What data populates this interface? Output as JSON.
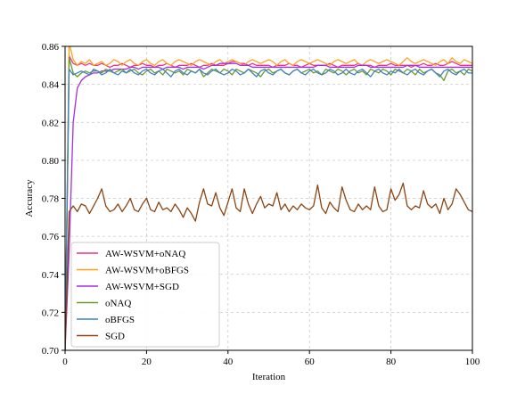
{
  "chart_data": {
    "type": "line",
    "title": "",
    "xlabel": "Iteration",
    "ylabel": "Accuracy",
    "xlim": [
      0,
      100
    ],
    "ylim": [
      0.7,
      0.86
    ],
    "xticks": [
      0,
      20,
      40,
      60,
      80,
      100
    ],
    "yticks": [
      0.7,
      0.72,
      0.74,
      0.76,
      0.78,
      0.8,
      0.82,
      0.84,
      0.86
    ],
    "xtick_labels": [
      "0",
      "20",
      "40",
      "60",
      "80",
      "100"
    ],
    "ytick_labels": [
      "0.70",
      "0.72",
      "0.74",
      "0.76",
      "0.78",
      "0.80",
      "0.82",
      "0.84",
      "0.86"
    ],
    "grid": true,
    "legend_position": "lower-left",
    "x": [
      0,
      1,
      2,
      3,
      4,
      5,
      6,
      7,
      8,
      9,
      10,
      11,
      12,
      13,
      14,
      15,
      16,
      17,
      18,
      19,
      20,
      21,
      22,
      23,
      24,
      25,
      26,
      27,
      28,
      29,
      30,
      31,
      32,
      33,
      34,
      35,
      36,
      37,
      38,
      39,
      40,
      41,
      42,
      43,
      44,
      45,
      46,
      47,
      48,
      49,
      50,
      51,
      52,
      53,
      54,
      55,
      56,
      57,
      58,
      59,
      60,
      61,
      62,
      63,
      64,
      65,
      66,
      67,
      68,
      69,
      70,
      71,
      72,
      73,
      74,
      75,
      76,
      77,
      78,
      79,
      80,
      81,
      82,
      83,
      84,
      85,
      86,
      87,
      88,
      89,
      90,
      91,
      92,
      93,
      94,
      95,
      96,
      97,
      98,
      99,
      100
    ],
    "series": [
      {
        "name": "AW-WSVM+oNAQ",
        "color": "#e8338c",
        "values": [
          0.7,
          0.855,
          0.851,
          0.85,
          0.851,
          0.85,
          0.851,
          0.85,
          0.85,
          0.851,
          0.85,
          0.849,
          0.85,
          0.85,
          0.851,
          0.85,
          0.849,
          0.85,
          0.85,
          0.851,
          0.85,
          0.85,
          0.849,
          0.85,
          0.85,
          0.851,
          0.85,
          0.849,
          0.85,
          0.85,
          0.85,
          0.851,
          0.85,
          0.849,
          0.85,
          0.85,
          0.851,
          0.85,
          0.85,
          0.85,
          0.851,
          0.852,
          0.852,
          0.851,
          0.851,
          0.85,
          0.851,
          0.85,
          0.85,
          0.85,
          0.85,
          0.849,
          0.85,
          0.85,
          0.85,
          0.851,
          0.85,
          0.85,
          0.849,
          0.85,
          0.851,
          0.85,
          0.85,
          0.85,
          0.85,
          0.851,
          0.85,
          0.849,
          0.85,
          0.85,
          0.85,
          0.85,
          0.851,
          0.85,
          0.85,
          0.85,
          0.849,
          0.85,
          0.85,
          0.85,
          0.851,
          0.85,
          0.85,
          0.85,
          0.85,
          0.849,
          0.85,
          0.85,
          0.851,
          0.85,
          0.85,
          0.851,
          0.85,
          0.85,
          0.851,
          0.852,
          0.851,
          0.85,
          0.85,
          0.85,
          0.85
        ]
      },
      {
        "name": "AW-WSVM+oBFGS",
        "color": "#ff9f1c",
        "values": [
          0.7,
          0.862,
          0.853,
          0.85,
          0.852,
          0.851,
          0.853,
          0.85,
          0.851,
          0.852,
          0.85,
          0.851,
          0.853,
          0.852,
          0.85,
          0.852,
          0.853,
          0.851,
          0.85,
          0.852,
          0.853,
          0.851,
          0.85,
          0.852,
          0.853,
          0.851,
          0.85,
          0.852,
          0.853,
          0.852,
          0.851,
          0.85,
          0.852,
          0.853,
          0.852,
          0.851,
          0.85,
          0.852,
          0.853,
          0.851,
          0.852,
          0.853,
          0.852,
          0.851,
          0.85,
          0.852,
          0.853,
          0.852,
          0.851,
          0.852,
          0.853,
          0.852,
          0.85,
          0.852,
          0.853,
          0.851,
          0.85,
          0.852,
          0.853,
          0.852,
          0.851,
          0.852,
          0.853,
          0.852,
          0.851,
          0.85,
          0.852,
          0.853,
          0.852,
          0.851,
          0.852,
          0.853,
          0.851,
          0.85,
          0.852,
          0.853,
          0.852,
          0.851,
          0.852,
          0.853,
          0.852,
          0.851,
          0.85,
          0.852,
          0.854,
          0.852,
          0.851,
          0.852,
          0.853,
          0.852,
          0.851,
          0.85,
          0.852,
          0.853,
          0.851,
          0.854,
          0.852,
          0.851,
          0.853,
          0.852,
          0.851
        ]
      },
      {
        "name": "AW-WSVM+SGD",
        "color": "#a52ee0",
        "values": [
          0.7,
          0.752,
          0.82,
          0.838,
          0.842,
          0.844,
          0.845,
          0.846,
          0.846,
          0.847,
          0.847,
          0.847,
          0.848,
          0.848,
          0.848,
          0.848,
          0.849,
          0.849,
          0.848,
          0.849,
          0.849,
          0.849,
          0.849,
          0.849,
          0.848,
          0.849,
          0.849,
          0.849,
          0.849,
          0.848,
          0.849,
          0.849,
          0.849,
          0.849,
          0.848,
          0.849,
          0.85,
          0.85,
          0.851,
          0.851,
          0.851,
          0.851,
          0.851,
          0.85,
          0.85,
          0.85,
          0.849,
          0.849,
          0.849,
          0.849,
          0.849,
          0.849,
          0.849,
          0.849,
          0.849,
          0.849,
          0.849,
          0.849,
          0.849,
          0.849,
          0.849,
          0.849,
          0.85,
          0.85,
          0.85,
          0.849,
          0.849,
          0.849,
          0.849,
          0.849,
          0.849,
          0.849,
          0.85,
          0.85,
          0.85,
          0.849,
          0.849,
          0.849,
          0.849,
          0.849,
          0.849,
          0.849,
          0.849,
          0.849,
          0.85,
          0.85,
          0.85,
          0.849,
          0.849,
          0.849,
          0.849,
          0.849,
          0.849,
          0.849,
          0.849,
          0.849,
          0.849,
          0.849,
          0.849,
          0.849,
          0.849
        ]
      },
      {
        "name": "oNAQ",
        "color": "#6a9a2c",
        "values": [
          0.7,
          0.854,
          0.846,
          0.844,
          0.846,
          0.847,
          0.846,
          0.847,
          0.847,
          0.846,
          0.848,
          0.847,
          0.846,
          0.847,
          0.848,
          0.846,
          0.847,
          0.848,
          0.846,
          0.845,
          0.847,
          0.848,
          0.846,
          0.847,
          0.845,
          0.848,
          0.847,
          0.846,
          0.847,
          0.845,
          0.848,
          0.847,
          0.846,
          0.848,
          0.844,
          0.846,
          0.848,
          0.847,
          0.846,
          0.848,
          0.847,
          0.845,
          0.848,
          0.847,
          0.846,
          0.848,
          0.847,
          0.846,
          0.844,
          0.847,
          0.848,
          0.846,
          0.847,
          0.848,
          0.846,
          0.845,
          0.847,
          0.848,
          0.846,
          0.847,
          0.848,
          0.846,
          0.847,
          0.845,
          0.848,
          0.847,
          0.846,
          0.848,
          0.847,
          0.845,
          0.847,
          0.848,
          0.846,
          0.847,
          0.845,
          0.848,
          0.847,
          0.846,
          0.848,
          0.847,
          0.845,
          0.848,
          0.847,
          0.846,
          0.848,
          0.847,
          0.845,
          0.848,
          0.846,
          0.847,
          0.848,
          0.846,
          0.845,
          0.842,
          0.847,
          0.848,
          0.846,
          0.847,
          0.845,
          0.848,
          0.847
        ]
      },
      {
        "name": "oBFGS",
        "color": "#3d82c4",
        "values": [
          0.7,
          0.848,
          0.845,
          0.846,
          0.847,
          0.846,
          0.845,
          0.848,
          0.847,
          0.845,
          0.846,
          0.848,
          0.846,
          0.845,
          0.847,
          0.846,
          0.848,
          0.846,
          0.845,
          0.847,
          0.848,
          0.846,
          0.845,
          0.847,
          0.848,
          0.846,
          0.844,
          0.847,
          0.848,
          0.846,
          0.845,
          0.847,
          0.846,
          0.848,
          0.846,
          0.845,
          0.847,
          0.848,
          0.846,
          0.845,
          0.846,
          0.848,
          0.847,
          0.845,
          0.846,
          0.848,
          0.846,
          0.844,
          0.847,
          0.848,
          0.846,
          0.845,
          0.847,
          0.848,
          0.846,
          0.845,
          0.847,
          0.848,
          0.846,
          0.845,
          0.847,
          0.848,
          0.846,
          0.845,
          0.846,
          0.848,
          0.847,
          0.845,
          0.846,
          0.848,
          0.846,
          0.845,
          0.847,
          0.848,
          0.846,
          0.844,
          0.847,
          0.848,
          0.846,
          0.845,
          0.847,
          0.846,
          0.848,
          0.846,
          0.845,
          0.847,
          0.848,
          0.846,
          0.845,
          0.847,
          0.848,
          0.846,
          0.844,
          0.847,
          0.848,
          0.846,
          0.845,
          0.847,
          0.848,
          0.846,
          0.846
        ]
      },
      {
        "name": "SGD",
        "color": "#8b4513",
        "values": [
          0.7,
          0.773,
          0.776,
          0.773,
          0.777,
          0.776,
          0.772,
          0.776,
          0.78,
          0.785,
          0.776,
          0.773,
          0.774,
          0.777,
          0.773,
          0.776,
          0.78,
          0.774,
          0.773,
          0.777,
          0.78,
          0.774,
          0.773,
          0.778,
          0.774,
          0.775,
          0.773,
          0.777,
          0.774,
          0.77,
          0.775,
          0.772,
          0.768,
          0.778,
          0.785,
          0.777,
          0.776,
          0.783,
          0.775,
          0.771,
          0.778,
          0.785,
          0.775,
          0.773,
          0.785,
          0.777,
          0.772,
          0.777,
          0.781,
          0.775,
          0.777,
          0.776,
          0.783,
          0.774,
          0.777,
          0.773,
          0.776,
          0.774,
          0.777,
          0.775,
          0.774,
          0.776,
          0.787,
          0.775,
          0.772,
          0.778,
          0.775,
          0.773,
          0.786,
          0.779,
          0.774,
          0.773,
          0.777,
          0.774,
          0.776,
          0.774,
          0.786,
          0.776,
          0.773,
          0.774,
          0.785,
          0.779,
          0.782,
          0.788,
          0.776,
          0.774,
          0.776,
          0.775,
          0.784,
          0.777,
          0.775,
          0.777,
          0.772,
          0.78,
          0.774,
          0.777,
          0.785,
          0.782,
          0.778,
          0.774,
          0.773
        ]
      }
    ]
  }
}
